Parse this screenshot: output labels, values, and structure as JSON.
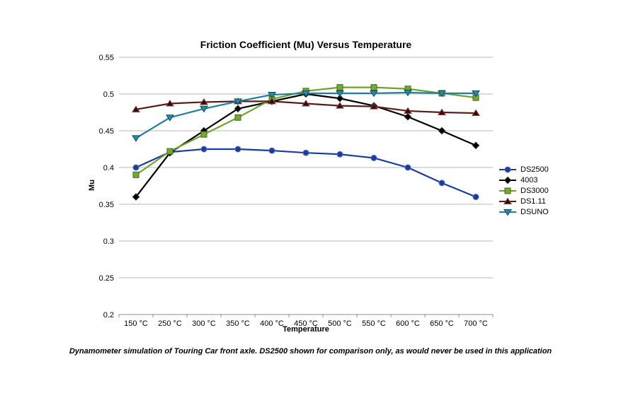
{
  "caption": "Dynamometer simulation of Touring Car front axle. DS2500 shown for comparison only, as would never be used in this application",
  "colors": {
    "background": "#FFFFFF",
    "gridline": "#B8B8B8",
    "axis": "#8C8C8C",
    "text": "#000000"
  },
  "chart_data": {
    "type": "line",
    "title": "Friction Coefficient (Mu) Versus Temperature",
    "xlabel": "Temperature",
    "ylabel": "Mu",
    "categories": [
      "150 °C",
      "250 °C",
      "300 °C",
      "350 °C",
      "400 °C",
      "450 °C",
      "500 °C",
      "550 °C",
      "600 °C",
      "650 °C",
      "700 °C"
    ],
    "y_ticks": [
      "0.2",
      "0.25",
      "0.3",
      "0.35",
      "0.4",
      "0.45",
      "0.5",
      "0.55"
    ],
    "ylim": [
      0.2,
      0.55
    ],
    "grid": "horizontal",
    "legend_position": "right",
    "series": [
      {
        "name": "DS2500",
        "marker": "circle",
        "color": "#1B3C9B",
        "marker_fill": "#1B3C9B",
        "marker_stroke": "#5472C4",
        "values": [
          0.4,
          0.421,
          0.425,
          0.425,
          0.423,
          0.42,
          0.418,
          0.413,
          0.4,
          0.379,
          0.36
        ]
      },
      {
        "name": "4003",
        "marker": "diamond",
        "color": "#000000",
        "marker_fill": "#000000",
        "marker_stroke": "#2A2A2A",
        "values": [
          0.36,
          0.42,
          0.45,
          0.48,
          0.49,
          0.5,
          0.494,
          0.484,
          0.469,
          0.45,
          0.43
        ]
      },
      {
        "name": "DS3000",
        "marker": "square",
        "color": "#6FA12E",
        "marker_fill": "#76A832",
        "marker_stroke": "#47691D",
        "values": [
          0.39,
          0.422,
          0.445,
          0.468,
          0.493,
          0.504,
          0.509,
          0.509,
          0.507,
          0.501,
          0.495
        ]
      },
      {
        "name": "DS1.11",
        "marker": "triangle-up",
        "color": "#581D18",
        "marker_fill": "#2E0D0B",
        "marker_stroke": "#8A3A30",
        "values": [
          0.479,
          0.487,
          0.489,
          0.49,
          0.49,
          0.487,
          0.484,
          0.483,
          0.477,
          0.475,
          0.474
        ]
      },
      {
        "name": "DSUNO",
        "marker": "triangle-down",
        "color": "#1F7F9C",
        "marker_fill": "#2B89A8",
        "marker_stroke": "#0E4A60",
        "values": [
          0.44,
          0.468,
          0.48,
          0.49,
          0.499,
          0.501,
          0.501,
          0.501,
          0.502,
          0.501,
          0.501
        ]
      }
    ]
  }
}
